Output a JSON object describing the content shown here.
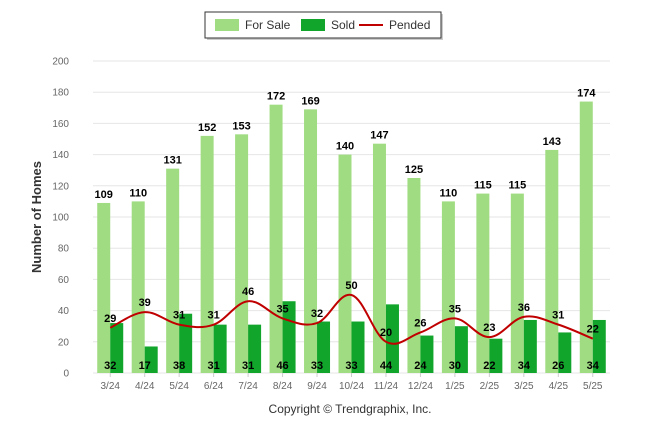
{
  "chart_data": {
    "type": "bar",
    "categories": [
      "3/24",
      "4/24",
      "5/24",
      "6/24",
      "7/24",
      "8/24",
      "9/24",
      "10/24",
      "11/24",
      "12/24",
      "1/25",
      "2/25",
      "3/25",
      "4/25",
      "5/25"
    ],
    "series": [
      {
        "name": "For Sale",
        "type": "bar",
        "color": "#a0dc82",
        "values": [
          109,
          110,
          131,
          152,
          153,
          172,
          169,
          140,
          147,
          125,
          110,
          115,
          115,
          143,
          174
        ]
      },
      {
        "name": "Sold",
        "type": "bar",
        "color": "#12a52b",
        "values": [
          32,
          17,
          38,
          31,
          31,
          46,
          33,
          33,
          44,
          24,
          30,
          22,
          34,
          26,
          34
        ]
      },
      {
        "name": "Pended",
        "type": "line",
        "color": "#c00000",
        "values": [
          29,
          39,
          31,
          31,
          46,
          35,
          32,
          50,
          20,
          26,
          35,
          23,
          36,
          31,
          22
        ]
      }
    ],
    "ylabel": "Number of Homes",
    "xlabel": "",
    "ylim": [
      0,
      200
    ],
    "yticks": [
      0,
      20,
      40,
      60,
      80,
      100,
      120,
      140,
      160,
      180,
      200
    ],
    "legend": "top-center",
    "grid": true
  },
  "footer": {
    "copyright": "Copyright © Trendgraphix, Inc."
  }
}
